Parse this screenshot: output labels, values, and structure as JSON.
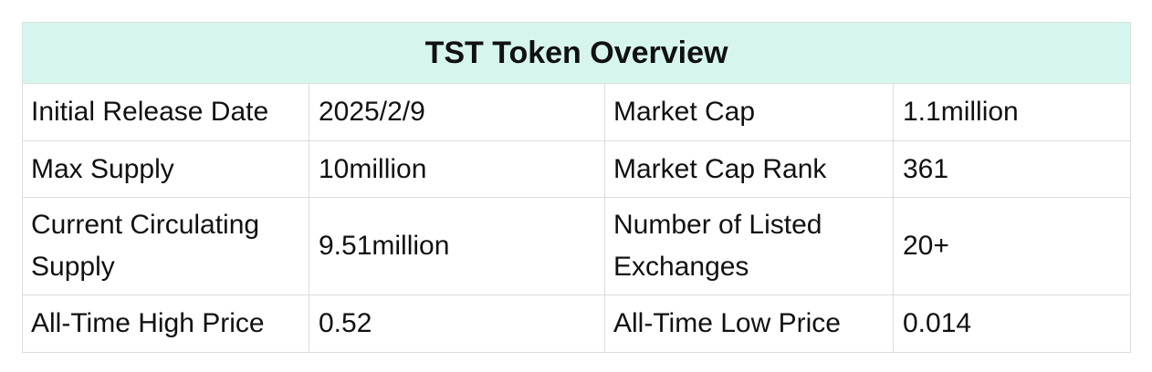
{
  "table": {
    "title": "TST Token Overview",
    "rows": [
      {
        "label1": "Initial Release Date",
        "value1": "2025/2/9",
        "label2": "Market Cap",
        "value2": "1.1million"
      },
      {
        "label1": "Max Supply",
        "value1": "10million",
        "label2": "Market Cap Rank",
        "value2": "361"
      },
      {
        "label1": "Current Circulating Supply",
        "value1": "9.51million",
        "label2": "Number of Listed Exchanges",
        "value2": "20+"
      },
      {
        "label1": "All-Time High Price",
        "value1": "0.52",
        "label2": "All-Time Low Price",
        "value2": "0.014"
      }
    ]
  }
}
